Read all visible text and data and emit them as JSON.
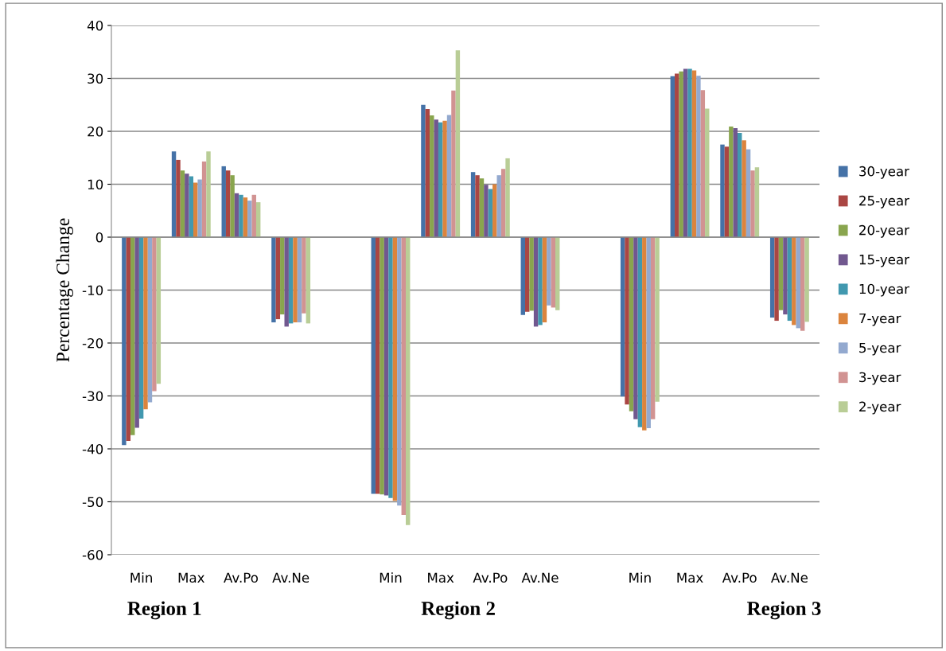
{
  "chart_data": {
    "type": "bar",
    "ylabel": "Percentage Change",
    "categories": [
      "Min",
      "Max",
      "Av.Po",
      "Av.Ne",
      null,
      "Min",
      "Max",
      "Av.Po",
      "Av.Ne",
      null,
      "Min",
      "Max",
      "Av.Po",
      "Av.Ne"
    ],
    "series": [
      {
        "name": "30-year",
        "color": "#4572a7",
        "values": [
          -39.3,
          16.2,
          13.4,
          -16.1,
          null,
          -48.5,
          25.0,
          12.3,
          -14.7,
          null,
          -30.1,
          30.4,
          17.5,
          -15.2
        ]
      },
      {
        "name": "25-year",
        "color": "#aa4643",
        "values": [
          -38.5,
          14.6,
          12.6,
          -15.5,
          null,
          -48.5,
          24.2,
          11.7,
          -14.1,
          null,
          -31.6,
          30.9,
          17.1,
          -15.8
        ]
      },
      {
        "name": "20-year",
        "color": "#89a54e",
        "values": [
          -37.4,
          12.6,
          11.7,
          -14.6,
          null,
          -48.6,
          23.0,
          11.1,
          -13.9,
          null,
          -32.9,
          31.3,
          20.9,
          -13.8
        ]
      },
      {
        "name": "15-year",
        "color": "#71588f",
        "values": [
          -36.0,
          12.0,
          8.3,
          -16.9,
          null,
          -48.8,
          22.2,
          9.9,
          -16.9,
          null,
          -34.4,
          31.8,
          20.6,
          -14.6
        ]
      },
      {
        "name": "10-year",
        "color": "#4198af",
        "values": [
          -34.3,
          11.5,
          8.0,
          -16.3,
          null,
          -49.3,
          21.7,
          9.1,
          -16.6,
          null,
          -35.9,
          31.8,
          19.7,
          -15.8
        ]
      },
      {
        "name": "7-year",
        "color": "#db843d",
        "values": [
          -32.5,
          10.3,
          7.5,
          -16.1,
          null,
          -49.8,
          22.0,
          10.0,
          -16.1,
          null,
          -36.5,
          31.5,
          18.3,
          -16.6
        ]
      },
      {
        "name": "5-year",
        "color": "#93a9cf",
        "values": [
          -31.2,
          10.9,
          6.9,
          -16.1,
          null,
          -50.7,
          23.1,
          11.7,
          -12.9,
          null,
          -36.1,
          30.5,
          16.6,
          -17.2
        ]
      },
      {
        "name": "3-year",
        "color": "#d19392",
        "values": [
          -29.1,
          14.3,
          8.0,
          -14.4,
          null,
          -52.5,
          27.7,
          12.9,
          -13.3,
          null,
          -34.4,
          27.8,
          12.6,
          -17.7
        ]
      },
      {
        "name": "2-year",
        "color": "#b9cd96",
        "values": [
          -27.7,
          16.2,
          6.6,
          -16.3,
          null,
          -54.4,
          35.3,
          14.9,
          -13.8,
          null,
          -31.1,
          24.3,
          13.2,
          -16.0
        ]
      }
    ],
    "ylim": [
      -60,
      40
    ],
    "yticks": [
      -60,
      -50,
      -40,
      -30,
      -20,
      -10,
      0,
      10,
      20,
      30,
      40
    ],
    "grid": "y",
    "legend": "right",
    "annotations": [
      "Region 1",
      "Region 2",
      "Region 3"
    ]
  }
}
